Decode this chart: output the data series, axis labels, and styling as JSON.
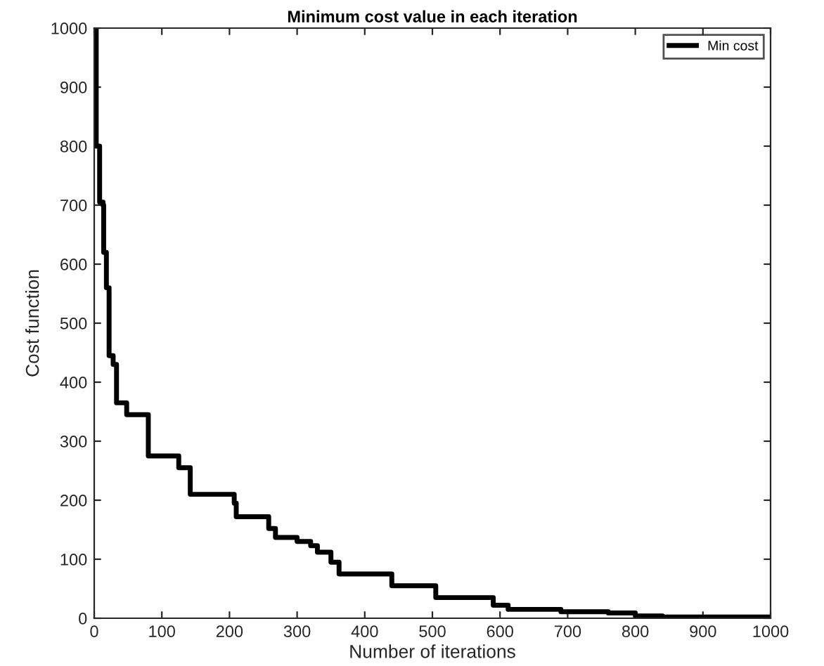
{
  "chart_data": {
    "type": "step",
    "title": "Minimum cost value in each iteration",
    "xlabel": "Number of iterations",
    "ylabel": "Cost function",
    "x": [
      0,
      3,
      8,
      13,
      14,
      18,
      22,
      28,
      33,
      48,
      80,
      125,
      142,
      207,
      210,
      258,
      268,
      300,
      320,
      330,
      350,
      362,
      440,
      505,
      590,
      612,
      690,
      760,
      800,
      840,
      1000
    ],
    "series": [
      {
        "name": "Min cost",
        "color": "#000000",
        "values": [
          1000,
          800,
          705,
          700,
          620,
          560,
          445,
          430,
          365,
          345,
          275,
          255,
          210,
          195,
          172,
          152,
          137,
          130,
          123,
          112,
          95,
          75,
          55,
          35,
          22,
          15,
          11,
          9,
          4,
          2,
          0
        ]
      }
    ],
    "xlim": [
      0,
      1000
    ],
    "xticks": [
      0,
      100,
      200,
      300,
      400,
      500,
      600,
      700,
      800,
      900,
      1000
    ],
    "ylim": [
      0,
      1000
    ],
    "yticks": [
      0,
      100,
      200,
      300,
      400,
      500,
      600,
      700,
      800,
      900,
      1000
    ],
    "grid": false,
    "legend": "top right",
    "marker": "none",
    "line_style": "solid"
  }
}
